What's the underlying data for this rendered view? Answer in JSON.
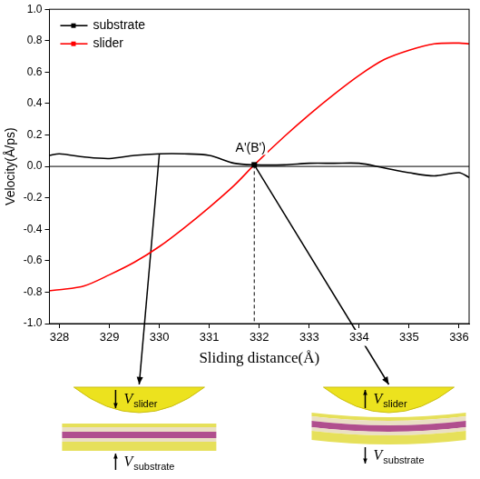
{
  "chart_data": {
    "type": "line",
    "xlabel": "Sliding distance(Å)",
    "ylabel": "Velocity(Å/ps)",
    "xlim": [
      327.8,
      336.2
    ],
    "xticks": [
      328,
      329,
      330,
      331,
      332,
      333,
      334,
      335,
      336
    ],
    "ylim": [
      -1.0,
      1.0
    ],
    "yticks": [
      {
        "value": -1.0,
        "label": "-1.0"
      },
      {
        "value": -0.8,
        "label": "-0.8"
      },
      {
        "value": -0.6,
        "label": "-0.6"
      },
      {
        "value": -0.4,
        "label": "-0.4"
      },
      {
        "value": -0.2,
        "label": "-0.2"
      },
      {
        "value": 0.0,
        "label": "0.0"
      },
      {
        "value": 0.2,
        "label": "0.2"
      },
      {
        "value": 0.4,
        "label": "0.4"
      },
      {
        "value": 0.6,
        "label": "0.6"
      },
      {
        "value": 0.8,
        "label": "0.8"
      },
      {
        "value": 1.0,
        "label": "1.0"
      }
    ],
    "grid": false,
    "legend": "upper left",
    "x": [
      327.8,
      328,
      328.5,
      329,
      329.5,
      330,
      330.5,
      331,
      331.5,
      331.9,
      332.5,
      333,
      333.5,
      334,
      334.5,
      335,
      335.5,
      336,
      336.2
    ],
    "series": [
      {
        "name": "substrate",
        "color": "#000000",
        "values": [
          0.07,
          0.08,
          0.06,
          0.05,
          0.07,
          0.08,
          0.08,
          0.07,
          0.02,
          0.01,
          0.01,
          0.02,
          0.02,
          0.02,
          -0.01,
          -0.04,
          -0.06,
          -0.04,
          -0.07
        ]
      },
      {
        "name": "slider",
        "color": "#ff0000",
        "values": [
          -0.79,
          -0.785,
          -0.76,
          -0.69,
          -0.61,
          -0.51,
          -0.39,
          -0.26,
          -0.12,
          0.01,
          0.19,
          0.33,
          0.46,
          0.58,
          0.68,
          0.74,
          0.78,
          0.785,
          0.78
        ]
      }
    ],
    "annotations": [
      {
        "type": "hline",
        "y": 0.0
      },
      {
        "type": "point",
        "text": "A'(B')",
        "x": 331.9,
        "y": 0.01,
        "marker": "square",
        "line_style": "dashed"
      }
    ],
    "insets": [
      {
        "x": 330.0,
        "y": 0.08,
        "slider": {
          "symbol": "V",
          "subscript": "slider",
          "direction": "down"
        },
        "substrate": {
          "symbol": "V",
          "subscript": "substrate",
          "direction": "up"
        }
      },
      {
        "x": 331.9,
        "y": 0.01,
        "slider": {
          "symbol": "V",
          "subscript": "slider",
          "direction": "up"
        },
        "substrate": {
          "symbol": "V",
          "subscript": "substrate",
          "direction": "down"
        }
      }
    ]
  }
}
